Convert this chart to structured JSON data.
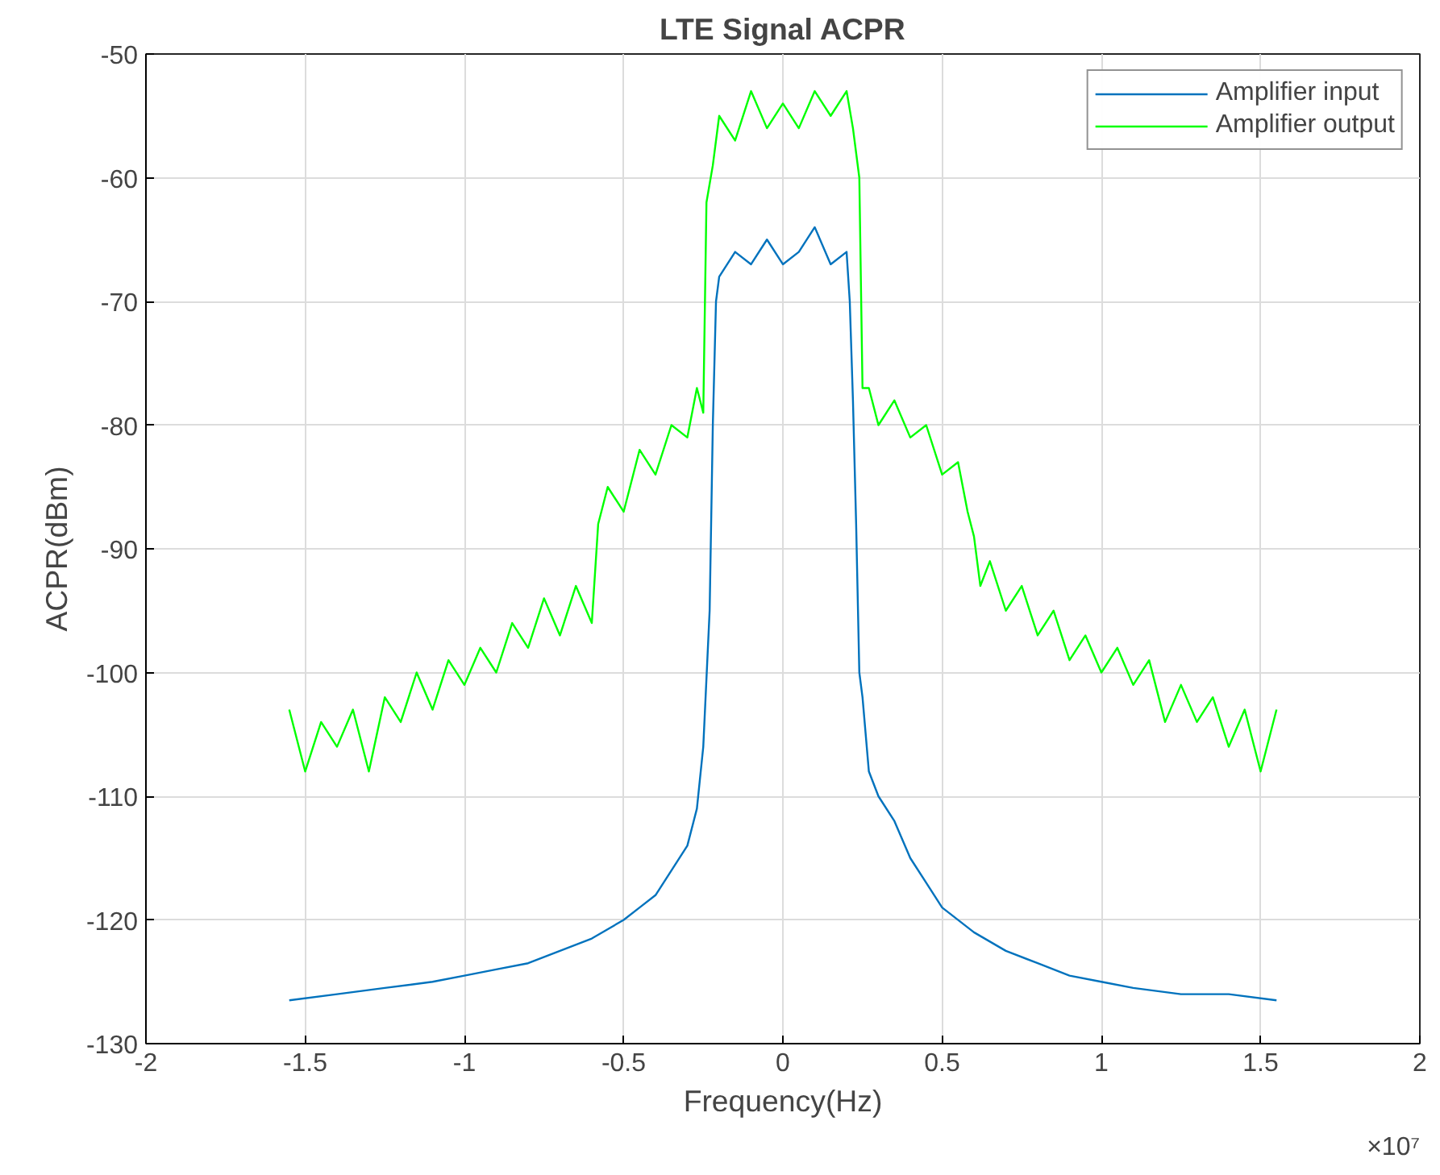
{
  "chart_data": {
    "type": "line",
    "title": "LTE Signal ACPR",
    "xlabel": "Frequency(Hz)",
    "ylabel": "ACPR(dBm)",
    "annotations": [
      "×10⁷"
    ],
    "xlim": [
      -2,
      2
    ],
    "ylim": [
      -130,
      -50
    ],
    "xticks": [
      -2,
      -1.5,
      -1,
      -0.5,
      0,
      0.5,
      1,
      1.5,
      2
    ],
    "yticks": [
      -130,
      -120,
      -110,
      -100,
      -90,
      -80,
      -70,
      -60,
      -50
    ],
    "grid": true,
    "legend": "top right",
    "series": [
      {
        "name": "Amplifier input",
        "color": "#0072bd",
        "x": [
          -1.55,
          -1.4,
          -1.25,
          -1.1,
          -1.0,
          -0.9,
          -0.8,
          -0.7,
          -0.6,
          -0.5,
          -0.45,
          -0.4,
          -0.35,
          -0.3,
          -0.27,
          -0.25,
          -0.23,
          -0.22,
          -0.21,
          -0.2,
          -0.15,
          -0.1,
          -0.05,
          0,
          0.05,
          0.1,
          0.15,
          0.2,
          0.21,
          0.22,
          0.23,
          0.24,
          0.25,
          0.27,
          0.3,
          0.35,
          0.4,
          0.45,
          0.5,
          0.6,
          0.7,
          0.8,
          0.9,
          1.0,
          1.1,
          1.25,
          1.4,
          1.55
        ],
        "values": [
          -126.5,
          -126,
          -125.5,
          -125,
          -124.5,
          -124,
          -123.5,
          -122.5,
          -121.5,
          -120,
          -119,
          -118,
          -116,
          -114,
          -111,
          -106,
          -95,
          -80,
          -70,
          -68,
          -66,
          -67,
          -65,
          -67,
          -66,
          -64,
          -67,
          -66,
          -70,
          -78,
          -88,
          -100,
          -102,
          -108,
          -110,
          -112,
          -115,
          -117,
          -119,
          -121,
          -122.5,
          -123.5,
          -124.5,
          -125,
          -125.5,
          -126,
          -126,
          -126.5
        ]
      },
      {
        "name": "Amplifier output",
        "color": "#00ff00",
        "x": [
          -1.55,
          -1.5,
          -1.45,
          -1.4,
          -1.35,
          -1.3,
          -1.25,
          -1.2,
          -1.15,
          -1.1,
          -1.05,
          -1.0,
          -0.95,
          -0.9,
          -0.85,
          -0.8,
          -0.75,
          -0.7,
          -0.65,
          -0.6,
          -0.58,
          -0.55,
          -0.5,
          -0.45,
          -0.4,
          -0.35,
          -0.3,
          -0.27,
          -0.25,
          -0.24,
          -0.22,
          -0.2,
          -0.15,
          -0.1,
          -0.05,
          0,
          0.05,
          0.1,
          0.15,
          0.2,
          0.22,
          0.24,
          0.25,
          0.27,
          0.3,
          0.35,
          0.4,
          0.45,
          0.5,
          0.55,
          0.58,
          0.6,
          0.62,
          0.65,
          0.7,
          0.75,
          0.8,
          0.85,
          0.9,
          0.95,
          1.0,
          1.05,
          1.1,
          1.15,
          1.2,
          1.25,
          1.3,
          1.35,
          1.4,
          1.45,
          1.5,
          1.55
        ],
        "values": [
          -103,
          -108,
          -104,
          -106,
          -103,
          -108,
          -102,
          -104,
          -100,
          -103,
          -99,
          -101,
          -98,
          -100,
          -96,
          -98,
          -94,
          -97,
          -93,
          -96,
          -88,
          -85,
          -87,
          -82,
          -84,
          -80,
          -81,
          -77,
          -79,
          -62,
          -59,
          -55,
          -57,
          -53,
          -56,
          -54,
          -56,
          -53,
          -55,
          -53,
          -56,
          -60,
          -77,
          -77,
          -80,
          -78,
          -81,
          -80,
          -84,
          -83,
          -87,
          -89,
          -93,
          -91,
          -95,
          -93,
          -97,
          -95,
          -99,
          -97,
          -100,
          -98,
          -101,
          -99,
          -104,
          -101,
          -104,
          -102,
          -106,
          -103,
          -108,
          -103
        ]
      }
    ]
  }
}
